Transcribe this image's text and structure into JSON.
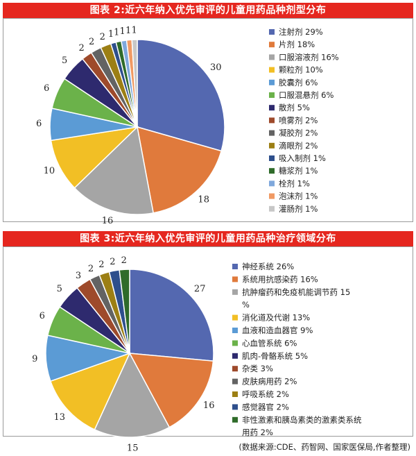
{
  "chart_data": [
    {
      "type": "pie",
      "title": "图表 2:近六年纳入优先审评的儿童用药品种剂型分布",
      "slices": [
        {
          "legend": "注射剂 29%",
          "value": 30,
          "color": "#5468b0"
        },
        {
          "legend": "片剂 18%",
          "value": 18,
          "color": "#e07a3c"
        },
        {
          "legend": "口服溶液剂 16%",
          "value": 16,
          "color": "#a5a5a5"
        },
        {
          "legend": "颗粒剂 10%",
          "value": 10,
          "color": "#f2bf25"
        },
        {
          "legend": "胶囊剂 6%",
          "value": 6,
          "color": "#5b9bd5"
        },
        {
          "legend": "口服混悬剂 6%",
          "value": 6,
          "color": "#6bb24a"
        },
        {
          "legend": "散剂 5%",
          "value": 5,
          "color": "#2e2a6e"
        },
        {
          "legend": "喷雾剂 2%",
          "value": 2,
          "color": "#9e4a2b"
        },
        {
          "legend": "凝胶剂 2%",
          "value": 2,
          "color": "#636363"
        },
        {
          "legend": "滴眼剂 2%",
          "value": 2,
          "color": "#9c7f14"
        },
        {
          "legend": "吸入制剂 1%",
          "value": 1,
          "color": "#2e4f8c"
        },
        {
          "legend": "糖浆剂 1%",
          "value": 1,
          "color": "#2f6b2a"
        },
        {
          "legend": "栓剂 1%",
          "value": 1,
          "color": "#7fa8dc"
        },
        {
          "legend": "泡沫剂 1%",
          "value": 1,
          "color": "#f09a64"
        },
        {
          "legend": "灌肠剂 1%",
          "value": 1,
          "color": "#c7c7c7"
        }
      ]
    },
    {
      "type": "pie",
      "title": "图表 3:近六年纳入优先审评的儿童用药品种治疗领域分布",
      "slices": [
        {
          "legend": "神经系统 26%",
          "value": 27,
          "color": "#5468b0"
        },
        {
          "legend": "系统用抗感染药 16%",
          "value": 16,
          "color": "#e07a3c"
        },
        {
          "legend": "抗肿瘤药和免疫机能调节药 15%",
          "value": 15,
          "color": "#a5a5a5"
        },
        {
          "legend": "消化道及代谢 13%",
          "value": 13,
          "color": "#f2bf25"
        },
        {
          "legend": "血液和造血器官 9%",
          "value": 9,
          "color": "#5b9bd5"
        },
        {
          "legend": "心血管系统 6%",
          "value": 6,
          "color": "#6bb24a"
        },
        {
          "legend": "肌肉-骨骼系统 5%",
          "value": 5,
          "color": "#2e2a6e"
        },
        {
          "legend": "杂类 3%",
          "value": 3,
          "color": "#9e4a2b"
        },
        {
          "legend": "皮肤病用药 2%",
          "value": 2,
          "color": "#636363"
        },
        {
          "legend": "呼吸系统 2%",
          "value": 2,
          "color": "#9c7f14"
        },
        {
          "legend": "感觉器官 2%",
          "value": 2,
          "color": "#2e4f8c"
        },
        {
          "legend": "非性激素和胰岛素类的激素类系统用药 2%",
          "value": 2,
          "color": "#2f6b2a"
        }
      ]
    }
  ],
  "source_note": "(数据来源:CDE、药智网、国家医保局,作者整理)"
}
